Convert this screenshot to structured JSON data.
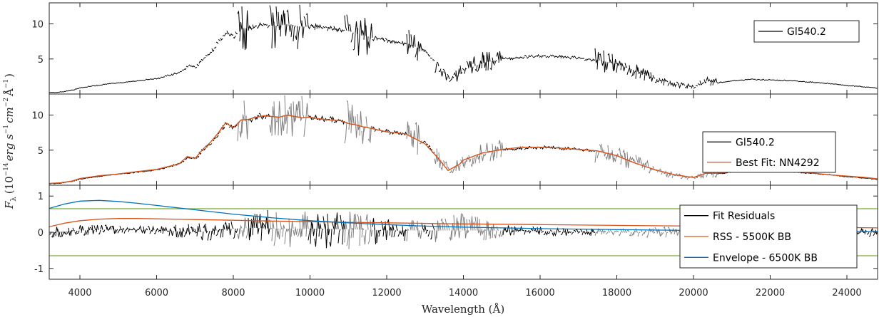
{
  "chart_data": {
    "type": "line",
    "title": "",
    "xlabel": "Wavelength (Å)",
    "ylabel": "F_λ (10^-14 erg s^-1 cm^-2 Å^-1)",
    "ylabel_parts": {
      "symbol": "F",
      "symbol_sub": "λ",
      "open": "(10",
      "exp1": "−14",
      "erg": "erg s",
      "exp2": "−1",
      "cm": "cm",
      "exp3": "−2",
      "ang": "Å",
      "exp4": "−1",
      "close": ")"
    },
    "xlim": [
      3200,
      24800
    ],
    "xticks": [
      4000,
      6000,
      8000,
      10000,
      12000,
      14000,
      16000,
      18000,
      20000,
      22000,
      24000
    ],
    "grid": false,
    "colors": {
      "observed": "#000000",
      "telluric_gray": "#808080",
      "best_fit": "#D95319",
      "rss": "#D95319",
      "envelope": "#0072BD",
      "threshold": "#77AC30"
    },
    "telluric_bands": [
      [
        8100,
        8350
      ],
      [
        8900,
        9900
      ],
      [
        10900,
        11600
      ],
      [
        12500,
        12900
      ],
      [
        13200,
        15000
      ],
      [
        17400,
        20000
      ],
      [
        20100,
        20600
      ]
    ],
    "panels": [
      {
        "id": "observed",
        "ylim": [
          0,
          13
        ],
        "yticks": [
          5,
          10
        ],
        "legend_location": "top-right",
        "series": [
          {
            "name": "Gl540.2",
            "role": "observed",
            "x": [
              3200,
              3500,
              3800,
              4000,
              4500,
              5000,
              5500,
              6000,
              6400,
              6600,
              6800,
              7000,
              7200,
              7400,
              7600,
              7800,
              8000,
              8200,
              8400,
              8600,
              8800,
              9000,
              9200,
              9400,
              9600,
              9800,
              10000,
              10200,
              10500,
              10800,
              11000,
              11200,
              11400,
              11600,
              12000,
              12500,
              13000,
              13300,
              13600,
              13900,
              14000,
              14500,
              15000,
              15500,
              16000,
              16500,
              17000,
              17500,
              18000,
              18500,
              19000,
              19500,
              20000,
              20300,
              20600,
              21000,
              21500,
              22000,
              22500,
              23000,
              23500,
              24000,
              24500,
              24800
            ],
            "y": [
              0.2,
              0.3,
              0.6,
              0.9,
              1.3,
              1.6,
              1.9,
              2.2,
              2.8,
              3.2,
              4.0,
              3.8,
              5.2,
              6.0,
              7.5,
              8.8,
              8.3,
              9.4,
              9.3,
              9.8,
              9.9,
              9.7,
              9.8,
              10.0,
              9.7,
              9.6,
              9.6,
              9.5,
              9.4,
              9.2,
              8.9,
              8.5,
              8.3,
              8.0,
              7.6,
              7.2,
              6.0,
              4.0,
              2.0,
              3.0,
              3.5,
              4.5,
              5.0,
              5.3,
              5.4,
              5.3,
              5.1,
              4.8,
              4.2,
              3.2,
              2.1,
              1.4,
              1.0,
              1.8,
              1.6,
              1.9,
              2.1,
              2.0,
              1.9,
              1.7,
              1.5,
              1.2,
              1.0,
              0.8
            ]
          }
        ]
      },
      {
        "id": "fit",
        "ylim": [
          0,
          13
        ],
        "yticks": [
          5,
          10
        ],
        "legend_location": "top-right",
        "series": [
          {
            "name": "Gl540.2",
            "role": "observed",
            "x": [
              3200,
              3500,
              3800,
              4000,
              4500,
              5000,
              5500,
              6000,
              6400,
              6600,
              6800,
              7000,
              7200,
              7400,
              7600,
              7800,
              8000,
              8200,
              8400,
              8600,
              8800,
              9000,
              9200,
              9400,
              9600,
              9800,
              10000,
              10200,
              10500,
              10800,
              11000,
              11200,
              11400,
              11600,
              12000,
              12500,
              13000,
              13300,
              13600,
              13900,
              14000,
              14500,
              15000,
              15500,
              16000,
              16500,
              17000,
              17500,
              18000,
              18500,
              19000,
              19500,
              20000,
              20300,
              20600,
              21000,
              21500,
              22000,
              22500,
              23000,
              23500,
              24000,
              24500,
              24800
            ],
            "y": [
              0.2,
              0.3,
              0.6,
              0.9,
              1.3,
              1.6,
              1.9,
              2.2,
              2.8,
              3.2,
              4.0,
              3.8,
              5.2,
              6.0,
              7.5,
              8.8,
              8.3,
              9.4,
              9.3,
              9.8,
              9.9,
              9.7,
              9.8,
              10.0,
              9.7,
              9.6,
              9.6,
              9.5,
              9.4,
              9.2,
              8.9,
              8.5,
              8.3,
              8.0,
              7.6,
              7.2,
              6.0,
              4.0,
              2.0,
              3.0,
              3.5,
              4.5,
              5.0,
              5.3,
              5.4,
              5.3,
              5.1,
              4.8,
              4.2,
              3.2,
              2.1,
              1.4,
              1.0,
              1.8,
              1.6,
              1.9,
              2.1,
              2.0,
              1.9,
              1.7,
              1.5,
              1.2,
              1.0,
              0.8
            ]
          },
          {
            "name": "Best Fit: NN4292",
            "role": "best_fit",
            "x": [
              3200,
              3500,
              3800,
              4000,
              4500,
              5000,
              5500,
              6000,
              6400,
              6600,
              6800,
              7000,
              7200,
              7400,
              7600,
              7800,
              8000,
              8200,
              8400,
              8600,
              8800,
              9000,
              9200,
              9400,
              9600,
              9800,
              10000,
              10200,
              10500,
              10800,
              11000,
              11200,
              11400,
              11600,
              12000,
              12500,
              13000,
              13300,
              13600,
              13900,
              14000,
              14500,
              15000,
              15500,
              16000,
              16500,
              17000,
              17500,
              18000,
              18500,
              19000,
              19500,
              20000,
              20300,
              20600,
              21000,
              21500,
              22000,
              22500,
              23000,
              23500,
              24000,
              24500,
              24800
            ],
            "y": [
              0.25,
              0.35,
              0.6,
              0.95,
              1.35,
              1.6,
              1.95,
              2.25,
              2.8,
              3.1,
              4.1,
              3.8,
              5.1,
              6.1,
              7.4,
              8.9,
              8.2,
              9.3,
              9.4,
              9.7,
              9.9,
              9.8,
              9.7,
              10.0,
              9.8,
              9.6,
              9.7,
              9.5,
              9.3,
              9.2,
              8.8,
              8.6,
              8.3,
              8.1,
              7.6,
              7.3,
              5.9,
              4.1,
              2.1,
              3.0,
              3.6,
              4.6,
              5.1,
              5.4,
              5.4,
              5.3,
              5.1,
              4.9,
              4.2,
              3.1,
              2.2,
              1.5,
              1.1,
              1.7,
              1.7,
              1.9,
              2.1,
              2.1,
              1.9,
              1.8,
              1.5,
              1.3,
              1.1,
              0.9
            ]
          }
        ]
      },
      {
        "id": "residuals",
        "ylim": [
          -1.3,
          1.3
        ],
        "yticks": [
          -1,
          0,
          1
        ],
        "legend_location": "bottom-right",
        "series": [
          {
            "name": "Fit Residuals",
            "role": "observed",
            "x": [
              3200,
              4000,
              5000,
              6000,
              7000,
              8000,
              8500,
              9000,
              10000,
              11000,
              12000,
              13000,
              14000,
              15000,
              16000,
              17000,
              18000,
              19000,
              20000,
              21000,
              22000,
              23000,
              24000,
              24800
            ],
            "y": [
              0.0,
              0.05,
              0.08,
              0.05,
              0.0,
              0.1,
              0.12,
              0.1,
              0.1,
              0.08,
              0.05,
              0.05,
              0.05,
              0.05,
              0.03,
              0.0,
              0.0,
              0.0,
              0.0,
              0.0,
              0.0,
              0.0,
              0.0,
              0.0
            ],
            "noise_amplitude": [
              0.15,
              0.15,
              0.12,
              0.12,
              0.25,
              0.3,
              0.4,
              0.55,
              0.5,
              0.6,
              0.3,
              0.3,
              0.5,
              0.15,
              0.12,
              0.1,
              0.1,
              0.15,
              0.12,
              0.1,
              0.08,
              0.1,
              0.12,
              0.12
            ]
          },
          {
            "name": "RSS - 5500K BB",
            "role": "rss",
            "x": [
              3200,
              3600,
              4000,
              4500,
              5000,
              5500,
              6000,
              7000,
              8000,
              9000,
              10000,
              12000,
              14000,
              16000,
              18000,
              20000,
              22000,
              24000,
              24800
            ],
            "y": [
              0.15,
              0.25,
              0.32,
              0.36,
              0.38,
              0.38,
              0.37,
              0.35,
              0.33,
              0.31,
              0.29,
              0.26,
              0.23,
              0.21,
              0.19,
              0.17,
              0.15,
              0.13,
              0.12
            ]
          },
          {
            "name": "Envelope - 6500K BB",
            "role": "envelope",
            "x": [
              3200,
              3600,
              4000,
              4500,
              5000,
              5500,
              6000,
              7000,
              8000,
              9000,
              10000,
              11000,
              12000,
              13000,
              14000,
              16000,
              18000,
              20000,
              22000,
              24000,
              24800
            ],
            "y": [
              0.66,
              0.78,
              0.86,
              0.88,
              0.85,
              0.8,
              0.74,
              0.62,
              0.5,
              0.4,
              0.32,
              0.26,
              0.21,
              0.17,
              0.14,
              0.1,
              0.07,
              0.05,
              0.03,
              0.02,
              0.02
            ]
          }
        ],
        "reference_lines": [
          0.65,
          -0.65
        ]
      }
    ]
  }
}
